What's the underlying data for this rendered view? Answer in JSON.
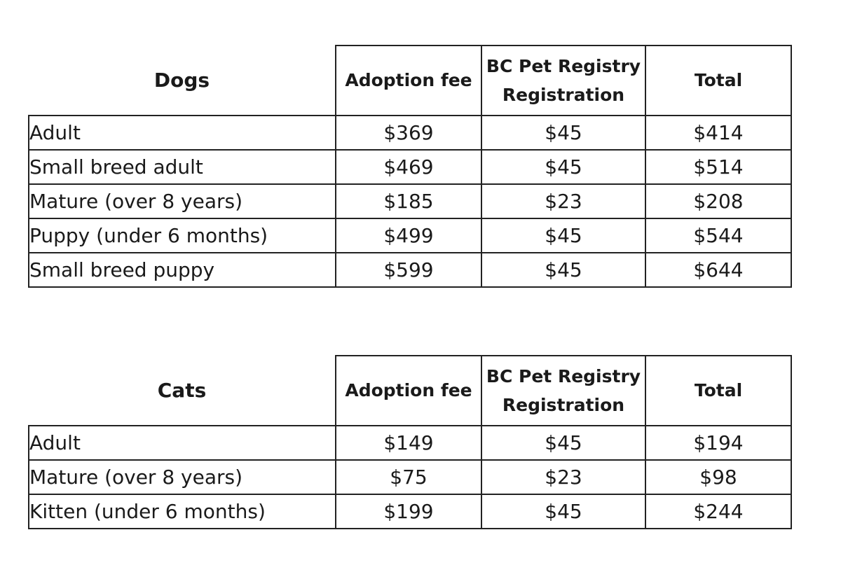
{
  "dogs": {
    "title": "Dogs",
    "headers": {
      "adoption_fee": "Adoption fee",
      "registry_line1": "BC Pet Registry",
      "registry_line2": "Registration",
      "total": "Total"
    },
    "rows": [
      {
        "label": "Adult",
        "fee": "$369",
        "registration": "$45",
        "total": "$414"
      },
      {
        "label": "Small breed adult",
        "fee": "$469",
        "registration": "$45",
        "total": "$514"
      },
      {
        "label": "Mature (over 8 years)",
        "fee": "$185",
        "registration": "$23",
        "total": "$208"
      },
      {
        "label": "Puppy (under 6 months)",
        "fee": "$499",
        "registration": "$45",
        "total": "$544"
      },
      {
        "label": "Small breed puppy",
        "fee": "$599",
        "registration": "$45",
        "total": "$644"
      }
    ]
  },
  "cats": {
    "title": "Cats",
    "headers": {
      "adoption_fee": "Adoption fee",
      "registry_line1": "BC Pet Registry",
      "registry_line2": "Registration",
      "total": "Total"
    },
    "rows": [
      {
        "label": "Adult",
        "fee": "$149",
        "registration": "$45",
        "total": "$194"
      },
      {
        "label": "Mature (over 8 years)",
        "fee": "$75",
        "registration": "$23",
        "total": "$98"
      },
      {
        "label": "Kitten (under 6 months)",
        "fee": "$199",
        "registration": "$45",
        "total": "$244"
      }
    ]
  }
}
